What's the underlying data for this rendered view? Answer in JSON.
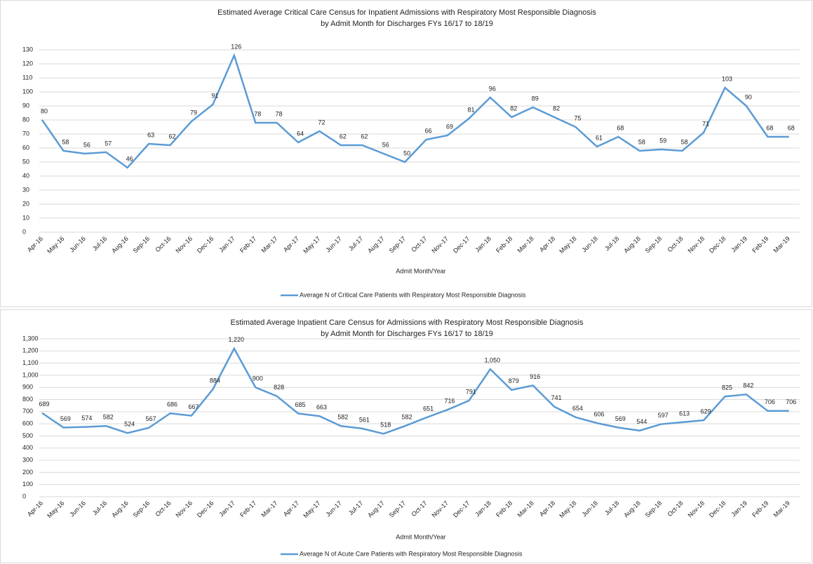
{
  "chart_data": [
    {
      "type": "line",
      "title": [
        "Estimated Average Critical Care Census for Inpatient Admissions with Respiratory Most Responsible Diagnosis",
        "by Admit Month for Discharges FYs 16/17 to 18/19"
      ],
      "x_label": "Admit Month/Year",
      "categories": [
        "Apr-16",
        "May-16",
        "Jun-16",
        "Jul-16",
        "Aug-16",
        "Sep-16",
        "Oct-16",
        "Nov-16",
        "Dec-16",
        "Jan-17",
        "Feb-17",
        "Mar-17",
        "Apr-17",
        "May-17",
        "Jun-17",
        "Jul-17",
        "Aug-17",
        "Sep-17",
        "Oct-17",
        "Nov-17",
        "Dec-17",
        "Jan-18",
        "Feb-18",
        "Mar-18",
        "Apr-18",
        "May-18",
        "Jun-18",
        "Jul-18",
        "Aug-18",
        "Sep-18",
        "Oct-18",
        "Nov-18",
        "Dec-18",
        "Jan-19",
        "Feb-19",
        "Mar-19"
      ],
      "series": [
        {
          "name": "Average N of Critical Care Patients with Respiratory Most Responsible Diagnosis",
          "color": "#5b9bd5",
          "values": [
            80,
            58,
            56,
            57,
            46,
            63,
            62,
            79,
            91,
            126,
            78,
            78,
            64,
            72,
            62,
            62,
            56,
            50,
            66,
            69,
            81,
            96,
            82,
            89,
            82,
            75,
            61,
            68,
            58,
            59,
            58,
            71,
            103,
            90,
            68,
            68
          ]
        }
      ],
      "ylim": [
        0,
        130
      ],
      "yticks": [
        0,
        10,
        20,
        30,
        40,
        50,
        60,
        70,
        80,
        90,
        100,
        110,
        120,
        130
      ],
      "grid": true,
      "legend": "bottom"
    },
    {
      "type": "line",
      "title": [
        "Estimated Average Inpatient Care Census for Admissions with Respiratory Most Responsible Diagnosis",
        "by Admit Month for Discharges FYs 16/17 to 18/19"
      ],
      "x_label": "Admit Month/Year",
      "categories": [
        "Apr-16",
        "May-16",
        "Jun-16",
        "Jul-16",
        "Aug-16",
        "Sep-16",
        "Oct-16",
        "Nov-16",
        "Dec-16",
        "Jan-17",
        "Feb-17",
        "Mar-17",
        "Apr-17",
        "May-17",
        "Jun-17",
        "Jul-17",
        "Aug-17",
        "Sep-17",
        "Oct-17",
        "Nov-17",
        "Dec-17",
        "Jan-18",
        "Feb-18",
        "Mar-18",
        "Apr-18",
        "May-18",
        "Jun-18",
        "Jul-18",
        "Aug-18",
        "Sep-18",
        "Oct-18",
        "Nov-18",
        "Dec-18",
        "Jan-19",
        "Feb-19",
        "Mar-19"
      ],
      "series": [
        {
          "name": "Average N of Acute Care Patients with Respiratory Most Responsible Diagnosis",
          "color": "#5b9bd5",
          "values": [
            689,
            569,
            574,
            582,
            524,
            567,
            686,
            667,
            884,
            1220,
            900,
            828,
            685,
            663,
            582,
            561,
            518,
            582,
            651,
            716,
            791,
            1050,
            879,
            916,
            741,
            654,
            606,
            569,
            544,
            597,
            613,
            629,
            825,
            842,
            706,
            706
          ],
          "value_labels": [
            "689",
            "569",
            "574",
            "582",
            "524",
            "567",
            "686",
            "667",
            "884",
            "1,220",
            "900",
            "828",
            "685",
            "663",
            "582",
            "561",
            "518",
            "582",
            "651",
            "716",
            "791",
            "1,050",
            "879",
            "916",
            "741",
            "654",
            "606",
            "569",
            "544",
            "597",
            "613",
            "629",
            "825",
            "842",
            "706",
            "706"
          ]
        }
      ],
      "ylim": [
        0,
        1300
      ],
      "yticks": [
        0,
        100,
        200,
        300,
        400,
        500,
        600,
        700,
        800,
        900,
        {
          "value": 1000,
          "label": "1,000"
        },
        {
          "value": 1100,
          "label": "1,100"
        },
        {
          "value": 1200,
          "label": "1,200"
        },
        {
          "value": 1300,
          "label": "1,300"
        }
      ],
      "grid": true,
      "legend": "bottom"
    }
  ]
}
